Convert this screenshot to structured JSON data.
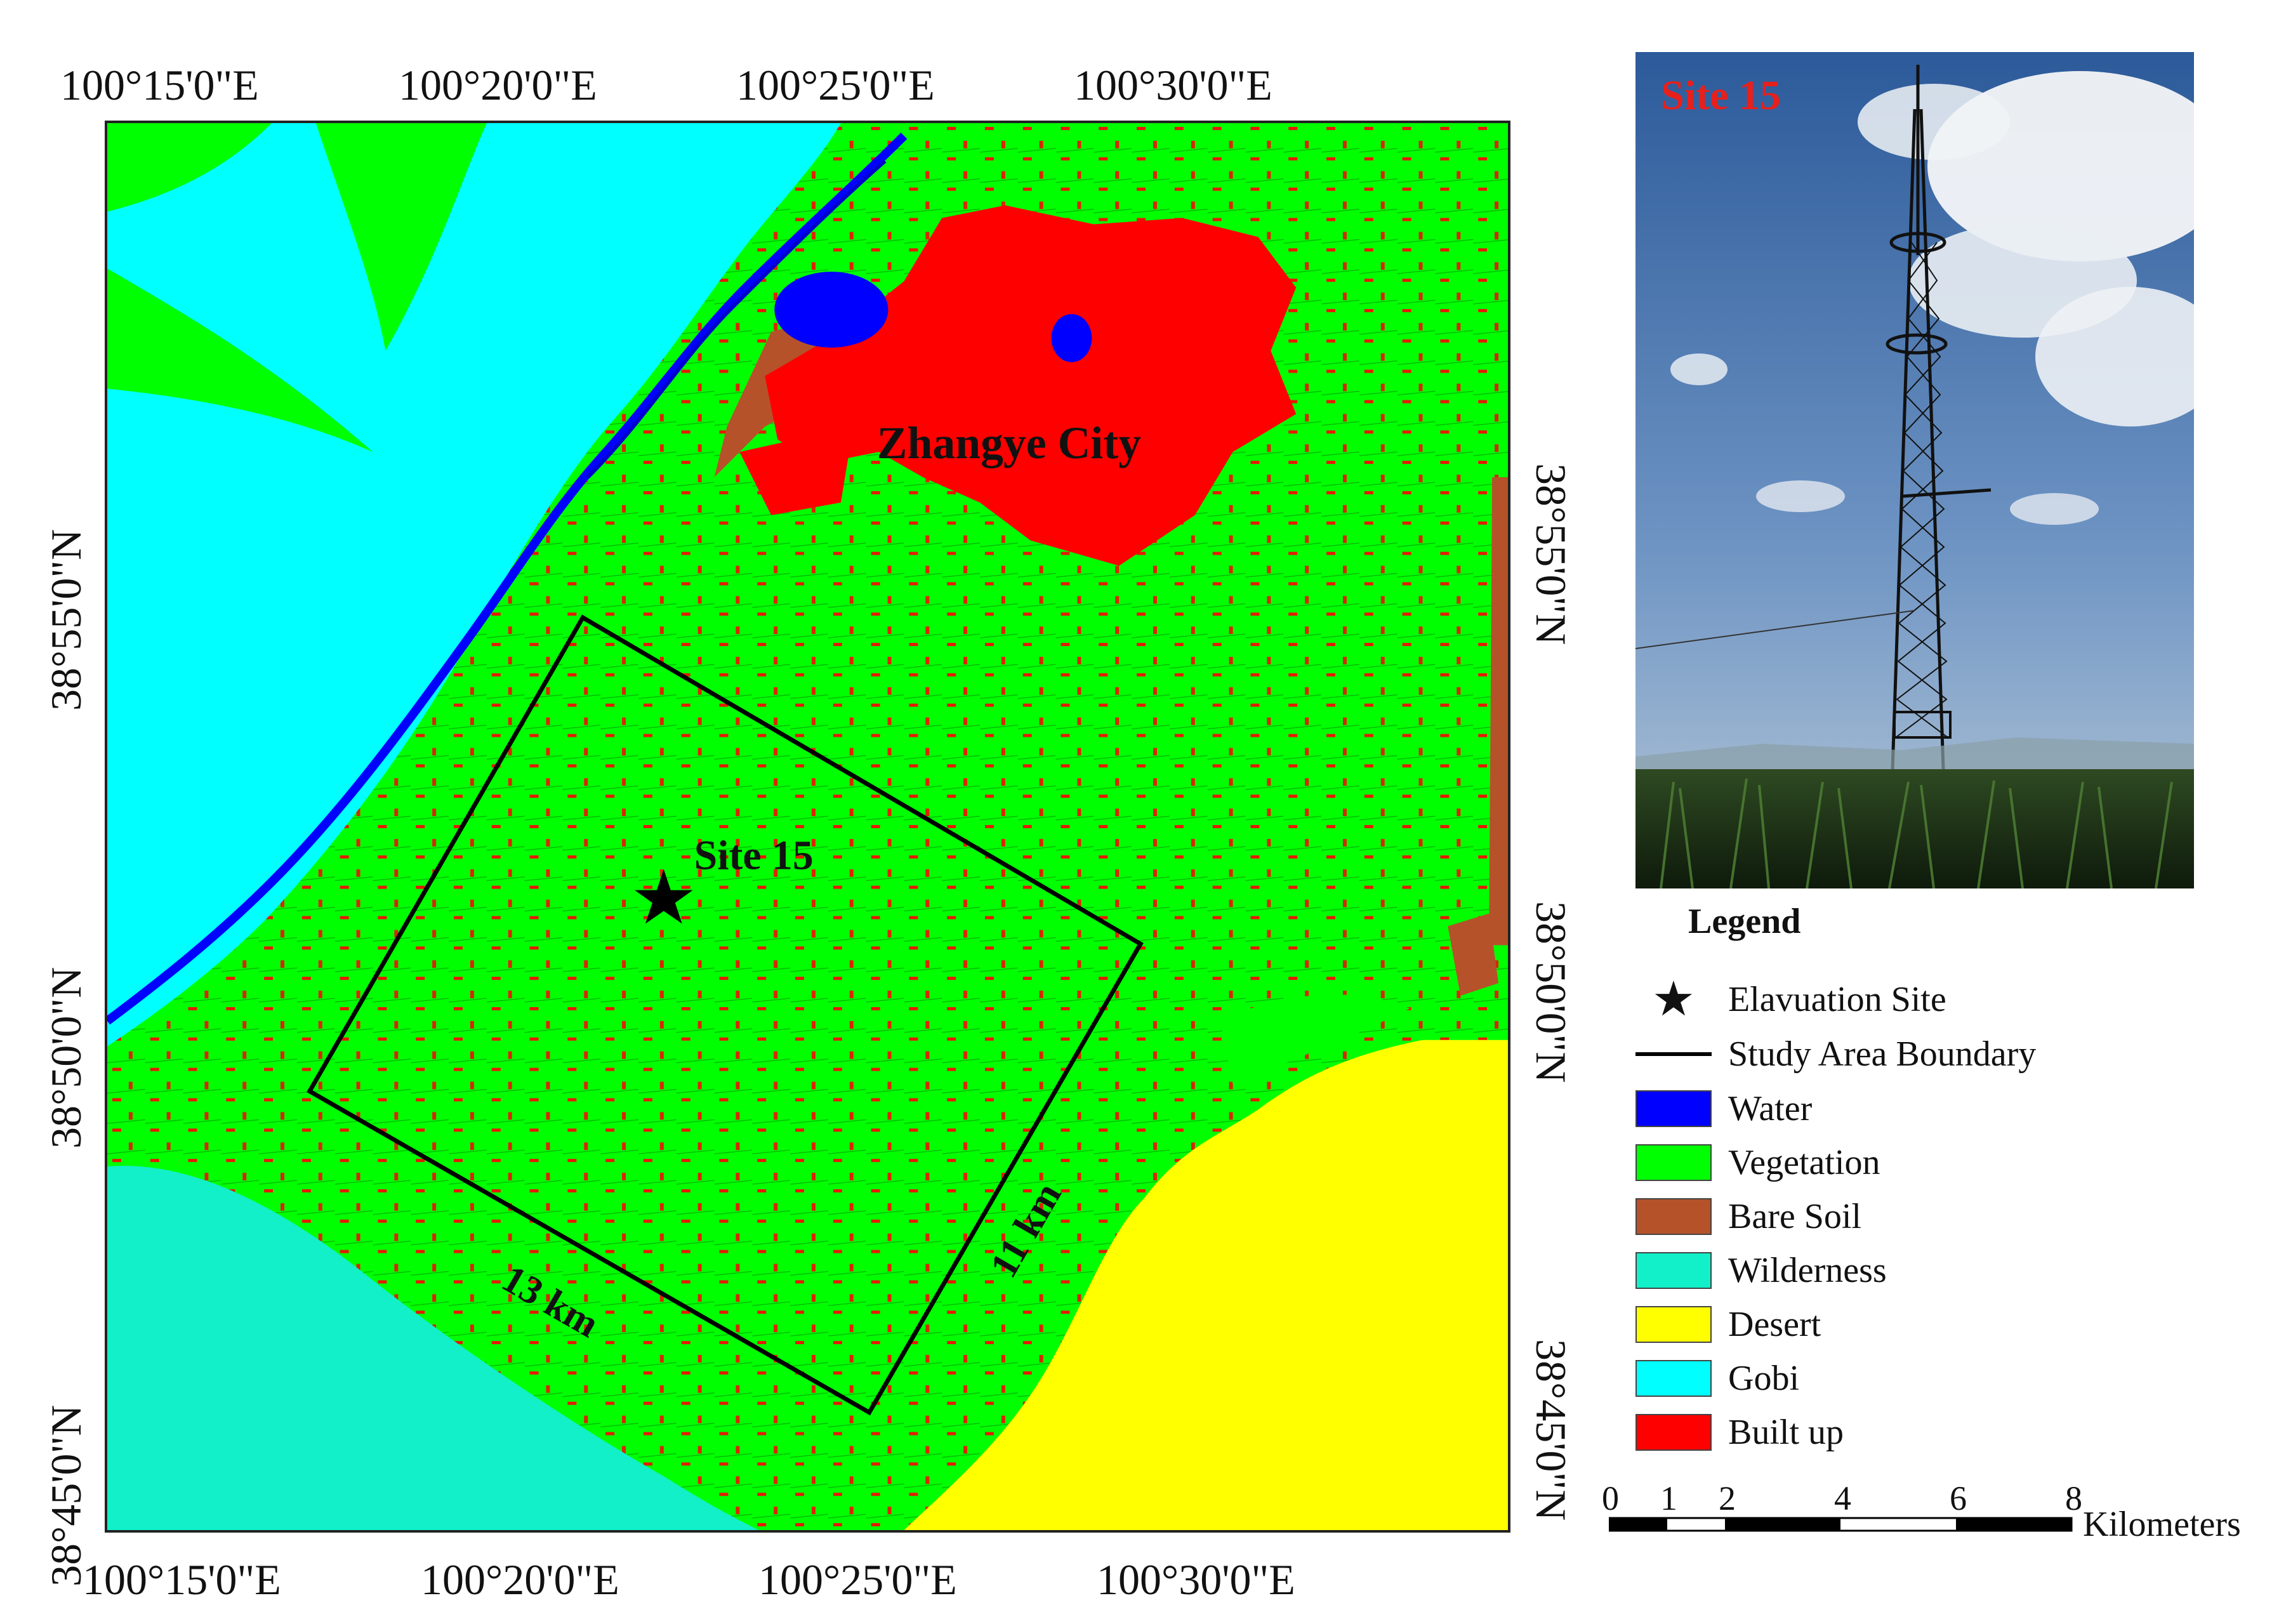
{
  "top_axis_labels": [
    "100°15'0\"E",
    "100°20'0\"E",
    "100°25'0\"E",
    "100°30'0\"E"
  ],
  "bottom_axis_labels": [
    "100°15'0\"E",
    "100°20'0\"E",
    "100°25'0\"E",
    "100°30'0\"E"
  ],
  "left_axis_labels": [
    "38°55'0\"N",
    "38°50'0\"N",
    "38°45'0\"N"
  ],
  "right_axis_labels": [
    "38°55'0\"N",
    "38°50'0\"N",
    "38°45'0\"N"
  ],
  "map": {
    "city_label": "Zhangye City",
    "site_label": "Site 15",
    "width_label": "13 km",
    "height_label": "11 km"
  },
  "photo": {
    "label": "Site 15"
  },
  "legend": {
    "title": "Legend",
    "items": [
      {
        "label": "Elavuation Site",
        "kind": "star",
        "color": "#000000"
      },
      {
        "label": "Study Area Boundary",
        "kind": "line",
        "color": "#000000"
      },
      {
        "label": "Water",
        "kind": "swatch",
        "color": "#0000ff"
      },
      {
        "label": "Vegetation",
        "kind": "swatch",
        "color": "#00ff00"
      },
      {
        "label": "Bare Soil",
        "kind": "swatch",
        "color": "#b5522a"
      },
      {
        "label": "Wilderness",
        "kind": "swatch",
        "color": "#11f0c8"
      },
      {
        "label": "Desert",
        "kind": "swatch",
        "color": "#ffff00"
      },
      {
        "label": "Gobi",
        "kind": "swatch",
        "color": "#00ffff"
      },
      {
        "label": "Built up",
        "kind": "swatch",
        "color": "#ff0000"
      }
    ]
  },
  "scale_bar": {
    "ticks": [
      "0",
      "1",
      "2",
      "4",
      "6",
      "8"
    ],
    "unit": "Kilometers"
  },
  "colors": {
    "water": "#0000ff",
    "vegetation": "#00ff00",
    "bare_soil": "#b5522a",
    "wilderness": "#11f0c8",
    "desert": "#ffff00",
    "gobi": "#00ffff",
    "built_up": "#ff0000",
    "photo_label": "#e8201c"
  }
}
